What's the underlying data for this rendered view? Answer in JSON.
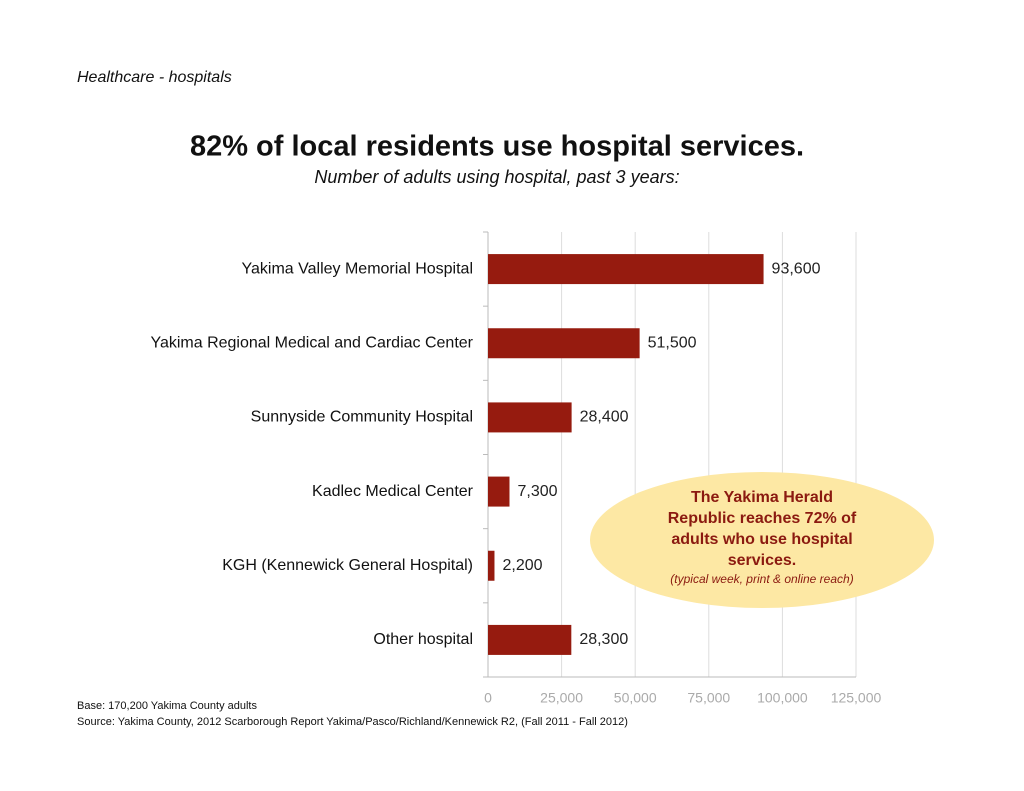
{
  "section": "Healthcare - hospitals",
  "chart_data": {
    "type": "bar",
    "orientation": "horizontal",
    "title": "82% of local residents use hospital services.",
    "subtitle": "Number of adults using hospital, past 3 years:",
    "categories": [
      "Yakima Valley Memorial Hospital",
      "Yakima Regional Medical and Cardiac Center",
      "Sunnyside Community Hospital",
      "Kadlec Medical Center",
      "KGH (Kennewick General Hospital)",
      "Other hospital"
    ],
    "values": [
      93600,
      51500,
      28400,
      7300,
      2200,
      28300
    ],
    "value_labels": [
      "93,600",
      "51,500",
      "28,400",
      "7,300",
      "2,200",
      "28,300"
    ],
    "color": "#961b0f",
    "xlim": [
      0,
      125000
    ],
    "xticks": [
      0,
      {
        "value": 25000,
        "label": "25,000"
      },
      {
        "value": 50000,
        "label": "50,000"
      },
      {
        "value": 75000,
        "label": "75,000"
      },
      {
        "value": 100000,
        "label": "100,000"
      },
      {
        "value": 125000,
        "label": "125,000"
      }
    ],
    "grid": true,
    "annotation": {
      "lines": [
        "The Yakima Herald",
        "Republic reaches 72% of",
        "adults who use hospital",
        "services."
      ],
      "note": "(typical week, print & online reach)"
    },
    "notes": [
      "Base: 170,200 Yakima County adults",
      "Source: Yakima County, 2012 Scarborough Report Yakima/Pasco/Richland/Kennewick R2, (Fall 2011 - Fall 2012)"
    ]
  }
}
